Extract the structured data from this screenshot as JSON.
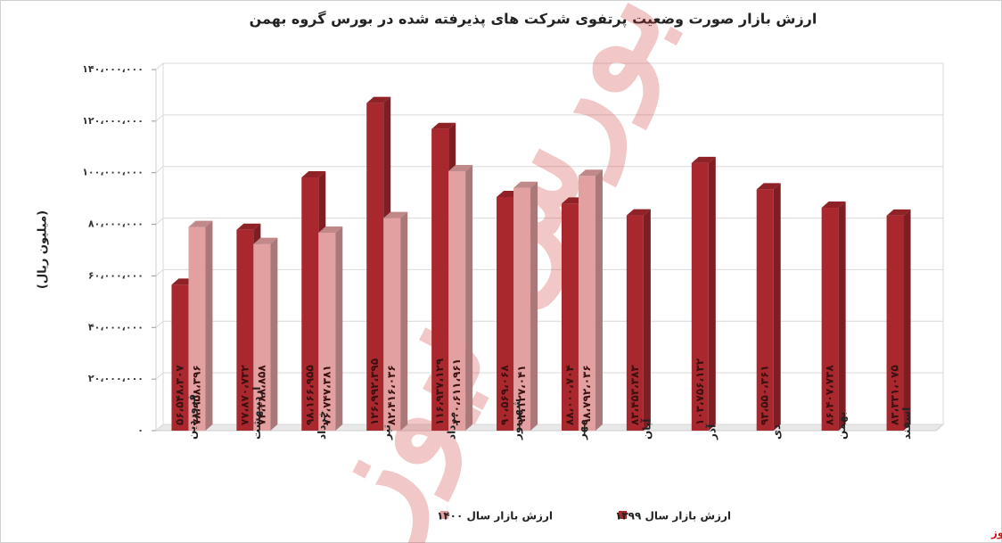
{
  "chart_data": {
    "type": "bar3d",
    "title": "ارزش بازار صورت وضعیت پرتفوی شرکت های پذیرفته شده در بورس گروه بهمن",
    "y_label": "(میلیون ریال)",
    "categories": [
      "فروردین",
      "اردیبهشت",
      "خرداد",
      "تیر",
      "مرداد",
      "شهریور",
      "مهر",
      "آبان",
      "آذر",
      "دی",
      "بهمن",
      "اسفند"
    ],
    "series": [
      {
        "name": "ارزش بازار سال ۱۳۹۹",
        "color": "#a8282e",
        "values": [
          56548307,
          77870732,
          98166955,
          126992395,
          116937129,
          90569068,
          88000704,
          83453383,
          103756132,
          93550361,
          86407738,
          83331075
        ],
        "value_labels": [
          "۵۶،۵۴۸،۳۰۷",
          "۷۷،۸۷۰،۷۳۲",
          "۹۸،۱۶۶،۹۵۵",
          "۱۲۶،۹۹۲،۳۹۵",
          "۱۱۶،۹۳۷،۱۲۹",
          "۹۰،۵۶۹،۰۶۸",
          "۸۸،۰۰۰،۷۰۴",
          "۸۳،۴۵۳،۳۸۳",
          "۱۰۳،۷۵۶،۱۳۲",
          "۹۳،۵۵۰،۳۶۱",
          "۸۶،۴۰۷،۷۳۸",
          "۸۳،۳۳۱،۰۷۵"
        ]
      },
      {
        "name": "ارزش بازار سال ۱۴۰۰",
        "color": "#e2a0a0",
        "values": [
          78958396,
          72388858,
          76747381,
          82416036,
          100611961,
          94127041,
          98792036,
          null,
          null,
          null,
          null,
          null
        ],
        "value_labels": [
          "۷۸،۹۵۸،۳۹۶",
          "۷۲،۳۸۸،۸۵۸",
          "۷۶،۷۴۷،۳۸۱",
          "۸۲،۴۱۶،۰۳۶",
          "۱۰۰،۶۱۱،۹۶۱",
          "۹۴،۱۲۷،۰۴۱",
          "۹۸،۷۹۲،۰۳۶",
          null,
          null,
          null,
          null,
          null
        ]
      }
    ],
    "ylim": [
      0,
      140000000
    ],
    "yticks": [
      {
        "value": 0,
        "label": "۰"
      },
      {
        "value": 20000000,
        "label": "۲۰،۰۰۰،۰۰۰"
      },
      {
        "value": 40000000,
        "label": "۴۰،۰۰۰،۰۰۰"
      },
      {
        "value": 60000000,
        "label": "۶۰،۰۰۰،۰۰۰"
      },
      {
        "value": 80000000,
        "label": "۸۰،۰۰۰،۰۰۰"
      },
      {
        "value": 100000000,
        "label": "۱۰۰،۰۰۰،۰۰۰"
      },
      {
        "value": 120000000,
        "label": "۱۲۰،۰۰۰،۰۰۰"
      },
      {
        "value": 140000000,
        "label": "۱۴۰،۰۰۰،۰۰۰"
      }
    ],
    "grid": true,
    "legend": "bottom",
    "watermark": "بورس نیوز",
    "source": "بورس نیوز"
  }
}
